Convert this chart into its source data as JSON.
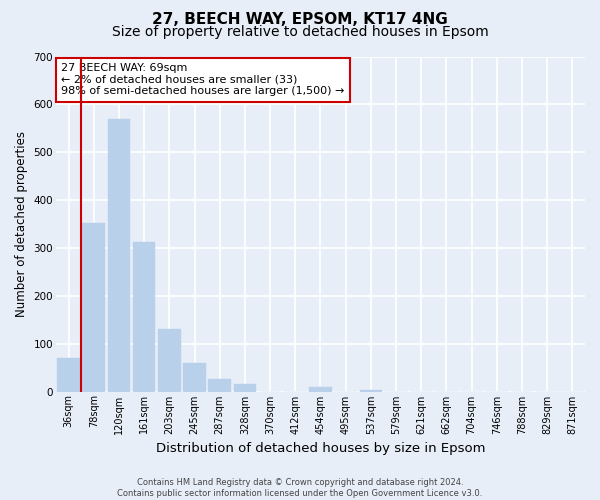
{
  "title": "27, BEECH WAY, EPSOM, KT17 4NG",
  "subtitle": "Size of property relative to detached houses in Epsom",
  "xlabel": "Distribution of detached houses by size in Epsom",
  "ylabel": "Number of detached properties",
  "bar_labels": [
    "36sqm",
    "78sqm",
    "120sqm",
    "161sqm",
    "203sqm",
    "245sqm",
    "287sqm",
    "328sqm",
    "370sqm",
    "412sqm",
    "454sqm",
    "495sqm",
    "537sqm",
    "579sqm",
    "621sqm",
    "662sqm",
    "704sqm",
    "746sqm",
    "788sqm",
    "829sqm",
    "871sqm"
  ],
  "bar_values": [
    70,
    352,
    570,
    313,
    130,
    60,
    26,
    15,
    0,
    0,
    10,
    0,
    3,
    0,
    0,
    0,
    0,
    0,
    0,
    0,
    0
  ],
  "bar_color": "#b8d0ea",
  "bar_edge_color": "#b8d0ea",
  "annotation_title": "27 BEECH WAY: 69sqm",
  "annotation_line1": "← 2% of detached houses are smaller (33)",
  "annotation_line2": "98% of semi-detached houses are larger (1,500) →",
  "annotation_box_facecolor": "#ffffff",
  "annotation_box_edgecolor": "#cc0000",
  "marker_line_color": "#cc0000",
  "ylim": [
    0,
    700
  ],
  "yticks": [
    0,
    100,
    200,
    300,
    400,
    500,
    600,
    700
  ],
  "footer_line1": "Contains HM Land Registry data © Crown copyright and database right 2024.",
  "footer_line2": "Contains public sector information licensed under the Open Government Licence v3.0.",
  "bg_color": "#e8eef8",
  "plot_bg_color": "#e8eef8",
  "grid_color": "#ffffff",
  "title_fontsize": 11,
  "subtitle_fontsize": 10,
  "tick_fontsize": 7,
  "ylabel_fontsize": 8.5,
  "xlabel_fontsize": 9.5,
  "annotation_fontsize": 8,
  "footer_fontsize": 6
}
